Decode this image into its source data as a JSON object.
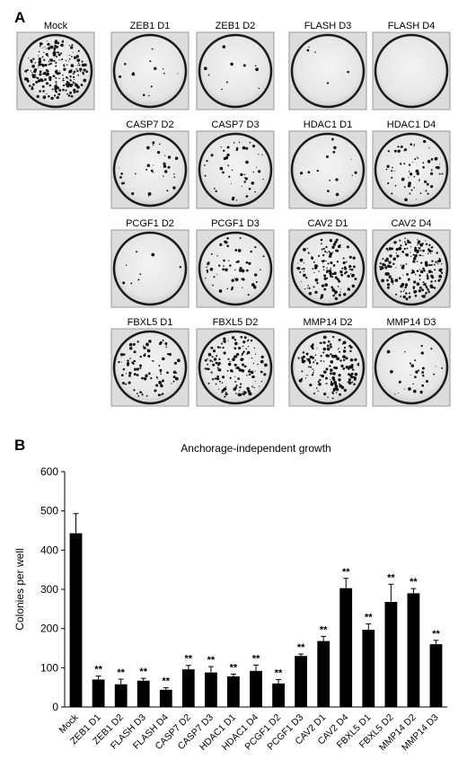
{
  "panels": {
    "a_label": "A",
    "b_label": "B"
  },
  "wells": [
    {
      "label": "Mock",
      "density": 0.9
    },
    {
      "label": "ZEB1 D1",
      "density": 0.05
    },
    {
      "label": "ZEB1 D2",
      "density": 0.04
    },
    {
      "label": "FLASH D3",
      "density": 0.02
    },
    {
      "label": "FLASH D4",
      "density": 0.0
    },
    {
      "label": "CASP7 D2",
      "density": 0.12
    },
    {
      "label": "CASP7 D3",
      "density": 0.18
    },
    {
      "label": "HDAC1 D1",
      "density": 0.06
    },
    {
      "label": "HDAC1 D4",
      "density": 0.25
    },
    {
      "label": "PCGF1 D2",
      "density": 0.03
    },
    {
      "label": "PCGF1 D3",
      "density": 0.22
    },
    {
      "label": "CAV2 D1",
      "density": 0.5
    },
    {
      "label": "CAV2 D4",
      "density": 0.8
    },
    {
      "label": "FBXL5 D1",
      "density": 0.35
    },
    {
      "label": "FBXL5 D2",
      "density": 0.55
    },
    {
      "label": "MMP14 D2",
      "density": 0.6
    },
    {
      "label": "MMP14 D3",
      "density": 0.12
    }
  ],
  "chart_data": {
    "type": "bar",
    "title": "Anchorage-independent growth",
    "ylabel": "Colonies per well",
    "xlabel": "",
    "ylim": [
      0,
      600
    ],
    "yticks": [
      0,
      100,
      200,
      300,
      400,
      500,
      600
    ],
    "categories": [
      "Mock",
      "ZEB1 D1",
      "ZEB1 D2",
      "FLASH D3",
      "FLASH D4",
      "CASP7 D2",
      "CASP7 D3",
      "HDAC1 D1",
      "HDAC1 D4",
      "PCGF1 D2",
      "PCGF1 D3",
      "CAV2 D1",
      "CAV2 D4",
      "FBXL5 D1",
      "FBXL5 D2",
      "MMP14 D2",
      "MMP14 D3"
    ],
    "values": [
      443,
      70,
      58,
      67,
      44,
      96,
      88,
      78,
      92,
      60,
      130,
      168,
      303,
      197,
      268,
      290,
      160
    ],
    "errors": [
      50,
      9,
      13,
      6,
      5,
      10,
      15,
      6,
      15,
      10,
      5,
      12,
      25,
      15,
      45,
      12,
      10
    ],
    "annotations": [
      "",
      "**",
      "**",
      "**",
      "**",
      "**",
      "**",
      "**",
      "**",
      "**",
      "**",
      "**",
      "**",
      "**",
      "**",
      "**",
      "**"
    ],
    "bar_color": "#000000"
  }
}
